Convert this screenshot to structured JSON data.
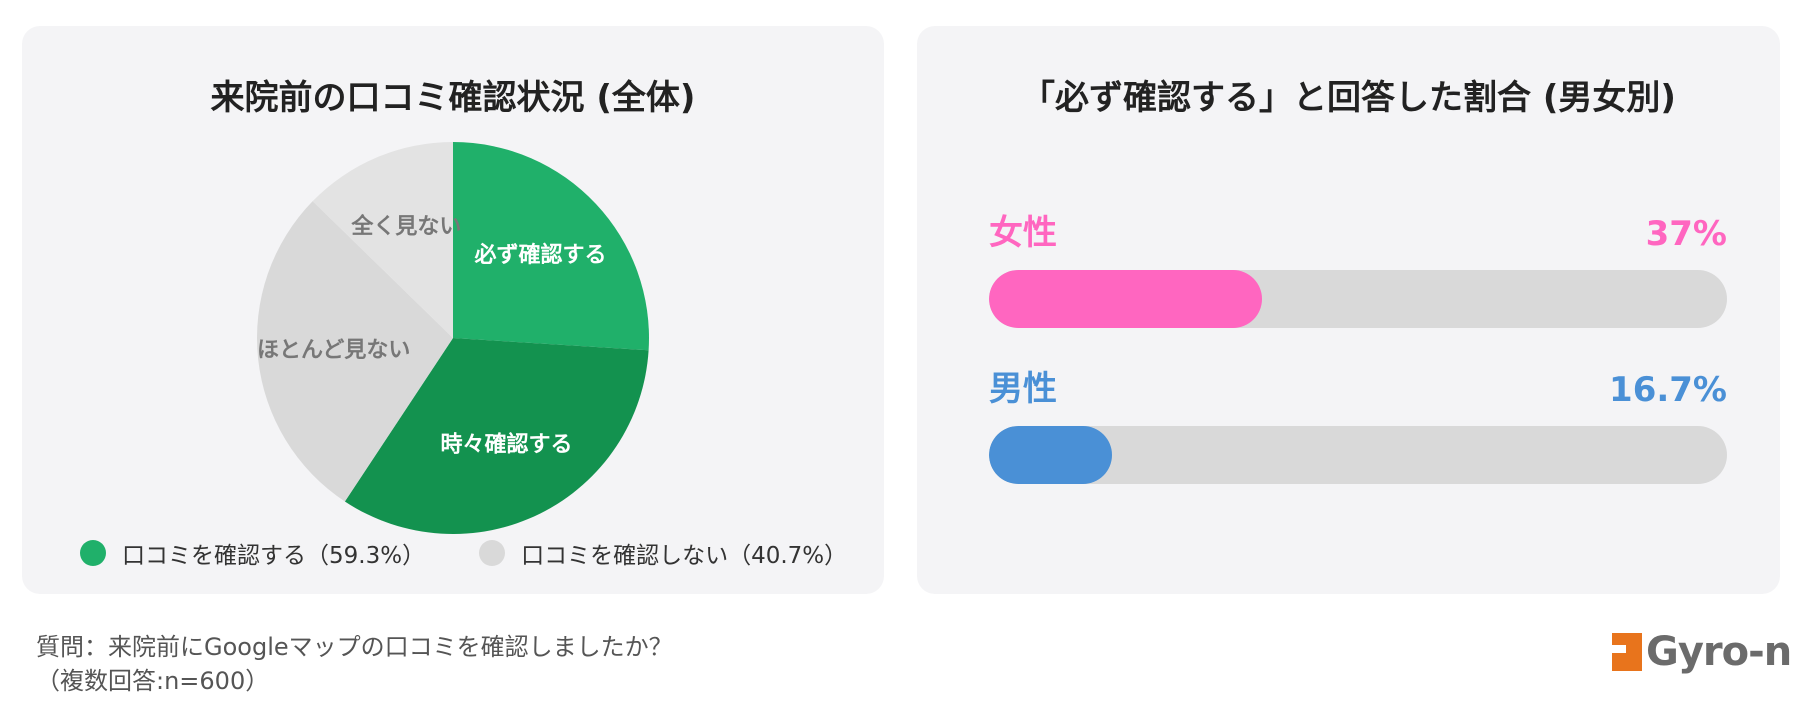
{
  "left_panel": {
    "title": "来院前の口コミ確認状況 (全体)",
    "legend": [
      {
        "label": "口コミを確認する（59.3%）",
        "color": "#20b06a"
      },
      {
        "label": "口コミを確認しない（40.7%）",
        "color": "#d9d9d9"
      }
    ]
  },
  "right_panel": {
    "title": "「必ず確認する」と回答した割合 (男女別)"
  },
  "footer": {
    "question_line1": "質問：来院前にGoogleマップの口コミを確認しましたか？",
    "question_line2": "（複数回答:n=600）",
    "logo_text": "Gyro-n",
    "logo_color": "#e8741c"
  },
  "chart_data": [
    {
      "type": "pie",
      "title": "来院前の口コミ確認状況 (全体)",
      "categories": [
        "必ず確認する",
        "時々確認する",
        "ほとんど見ない",
        "全く見ない"
      ],
      "values": [
        26,
        33.3,
        28,
        12.7
      ],
      "colors": [
        "#20b06a",
        "#13924f",
        "#d9d9d9",
        "#e3e3e3"
      ],
      "label_colors": [
        "#ffffff",
        "#ffffff",
        "#777777",
        "#777777"
      ],
      "groups": [
        {
          "label": "口コミを確認する",
          "value": 59.3
        },
        {
          "label": "口コミを確認しない",
          "value": 40.7
        }
      ]
    },
    {
      "type": "bar",
      "orientation": "horizontal",
      "title": "「必ず確認する」と回答した割合 (男女別)",
      "categories": [
        "女性",
        "男性"
      ],
      "values": [
        37,
        16.7
      ],
      "value_labels": [
        "37%",
        "16.7%"
      ],
      "colors": [
        "#ff66c0",
        "#4a90d6"
      ],
      "xlim": [
        0,
        100
      ]
    }
  ]
}
